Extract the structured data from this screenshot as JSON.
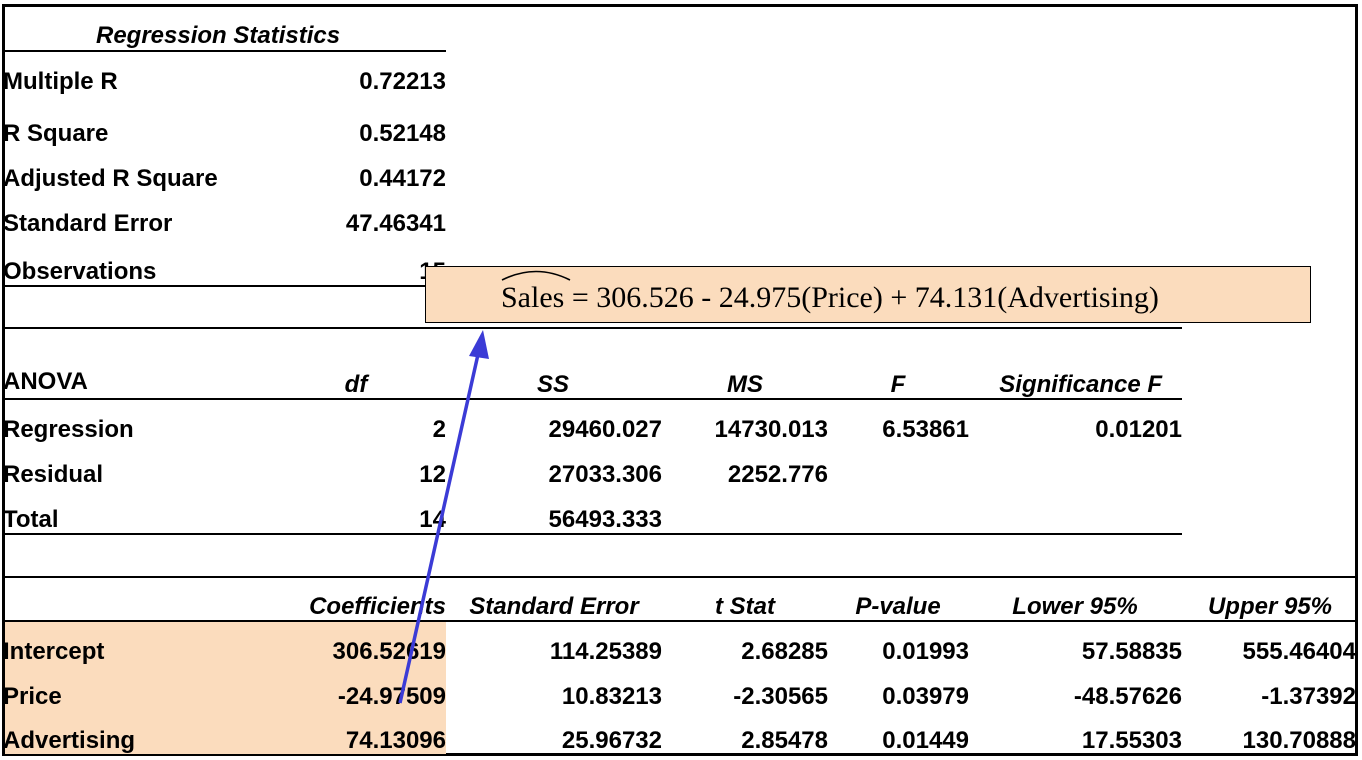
{
  "regression_statistics": {
    "title": "Regression Statistics",
    "rows": [
      {
        "label": "Multiple R",
        "value": "0.72213"
      },
      {
        "label": "R Square",
        "value": "0.52148"
      },
      {
        "label": "Adjusted R Square",
        "value": "0.44172"
      },
      {
        "label": "Standard Error",
        "value": "47.46341"
      },
      {
        "label": "Observations",
        "value": "15"
      }
    ]
  },
  "equation": {
    "lhs": "Sales",
    "rhs": "= 306.526 - 24.975(Price) + 74.131(Advertising)"
  },
  "anova": {
    "headers": {
      "label": "ANOVA",
      "df": "df",
      "ss": "SS",
      "ms": "MS",
      "f": "F",
      "sig": "Significance F"
    },
    "rows": [
      {
        "label": "Regression",
        "df": "2",
        "ss": "29460.027",
        "ms": "14730.013",
        "f": "6.53861",
        "sig": "0.01201"
      },
      {
        "label": "Residual",
        "df": "12",
        "ss": "27033.306",
        "ms": "2252.776",
        "f": "",
        "sig": ""
      },
      {
        "label": "Total",
        "df": "14",
        "ss": "56493.333",
        "ms": "",
        "f": "",
        "sig": ""
      }
    ]
  },
  "coefficients": {
    "headers": {
      "coef": "Coefficients",
      "se": "Standard Error",
      "t": "t Stat",
      "p": "P-value",
      "lo": "Lower 95%",
      "hi": "Upper 95%"
    },
    "rows": [
      {
        "label": "Intercept",
        "coef": "306.52619",
        "se": "114.25389",
        "t": "2.68285",
        "p": "0.01993",
        "lo": "57.58835",
        "hi": "555.46404"
      },
      {
        "label": "Price",
        "coef": "-24.97509",
        "se": "10.83213",
        "t": "-2.30565",
        "p": "0.03979",
        "lo": "-48.57626",
        "hi": "-1.37392"
      },
      {
        "label": "Advertising",
        "coef": "74.13096",
        "se": "25.96732",
        "t": "2.85478",
        "p": "0.01449",
        "lo": "17.55303",
        "hi": "130.70888"
      }
    ]
  },
  "colors": {
    "highlight": "#fbdcbd",
    "arrow": "#3b3bd6",
    "title_red": "#d40000"
  }
}
